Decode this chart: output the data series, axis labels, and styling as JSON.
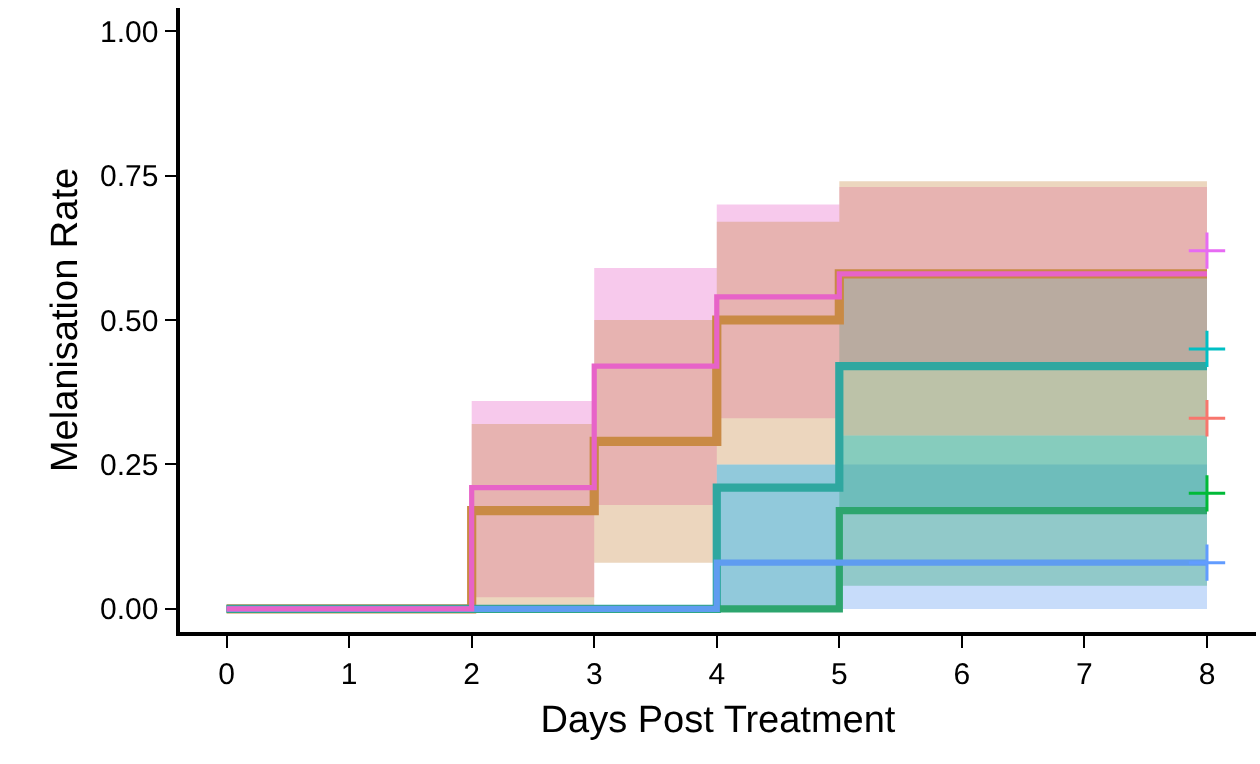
{
  "chart_data": {
    "type": "step",
    "xlabel": "Days Post Treatment",
    "ylabel": "Melanisation Rate",
    "xlim": [
      -0.38,
      8.4
    ],
    "xticks": [
      0,
      1,
      2,
      3,
      4,
      5,
      6,
      7,
      8
    ],
    "ylim": [
      -0.04,
      1.04
    ],
    "yticks": [
      {
        "value": 0,
        "label": "0.00"
      },
      {
        "value": 0.25,
        "label": "0.25"
      },
      {
        "value": 0.5,
        "label": "0.50"
      },
      {
        "value": 0.75,
        "label": "0.75"
      },
      {
        "value": 1,
        "label": "1.00"
      }
    ],
    "grid": false,
    "marker": "none",
    "line_style": "solid",
    "series": [
      {
        "color": "#c98a45",
        "x": [
          0,
          2,
          3,
          4,
          5,
          8
        ],
        "values": [
          0,
          0.17,
          0.29,
          0.5,
          0.58,
          0.58
        ],
        "lower": [
          0,
          0,
          0.08,
          0.25,
          0.3,
          0.3
        ],
        "upper": [
          0,
          0.32,
          0.5,
          0.67,
          0.74,
          0.74
        ]
      },
      {
        "color": "#2fa7a0",
        "x": [
          0,
          4,
          5,
          8
        ],
        "values": [
          0,
          0.21,
          0.42,
          0.42
        ],
        "lower": [
          0,
          0,
          0.17,
          0.17
        ],
        "upper": [
          0,
          0.25,
          0.58,
          0.58
        ]
      },
      {
        "color": "#2da56e",
        "x": [
          0,
          5,
          8
        ],
        "values": [
          0,
          0.17,
          0.17
        ],
        "lower": [
          0,
          0.04,
          0.04
        ],
        "upper": [
          0,
          0.3,
          0.3
        ]
      },
      {
        "color": "#5f9cf0",
        "x": [
          0,
          4,
          8
        ],
        "values": [
          0,
          0.08,
          0.08
        ],
        "lower": [
          0,
          0,
          0
        ],
        "upper": [
          0,
          0.25,
          0.25
        ]
      },
      {
        "color": "#e763c8",
        "x": [
          0,
          2,
          3,
          4,
          5,
          8
        ],
        "values": [
          0,
          0.21,
          0.42,
          0.54,
          0.58,
          0.58
        ],
        "lower": [
          0,
          0.02,
          0.18,
          0.33,
          0.42,
          0.42
        ],
        "upper": [
          0,
          0.36,
          0.59,
          0.7,
          0.73,
          0.73
        ]
      },
      {
        "type": "scatter",
        "marker": "cross",
        "color": "#e76bf3",
        "x": [
          8
        ],
        "values": [
          0.62
        ]
      },
      {
        "type": "scatter",
        "marker": "cross",
        "color": "#00bfc4",
        "x": [
          8
        ],
        "values": [
          0.45
        ]
      },
      {
        "type": "scatter",
        "marker": "cross",
        "color": "#f8766d",
        "x": [
          8
        ],
        "values": [
          0.33
        ]
      },
      {
        "type": "scatter",
        "marker": "cross",
        "color": "#00ba38",
        "x": [
          8
        ],
        "values": [
          0.2
        ]
      },
      {
        "type": "scatter",
        "marker": "cross",
        "color": "#619cff",
        "x": [
          8
        ],
        "values": [
          0.08
        ]
      }
    ]
  }
}
